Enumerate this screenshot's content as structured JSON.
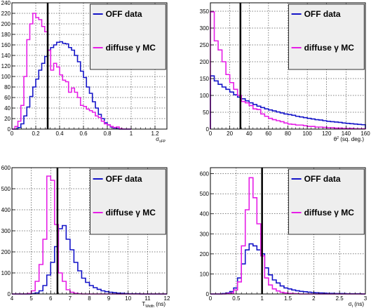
{
  "chart_data": [
    {
      "type": "step-histogram",
      "xlabel": "σ",
      "xlabel_sub": "sFP",
      "xlim": [
        0,
        1.3
      ],
      "ylim": [
        0,
        240
      ],
      "xticks": [
        0,
        0.2,
        0.4,
        0.6,
        0.8,
        1,
        1.2
      ],
      "xtick_labels": [
        "0",
        "0.2",
        "0.4",
        "0.6",
        "0.8",
        "1",
        "1.2"
      ],
      "yticks": [
        0,
        20,
        40,
        60,
        80,
        100,
        120,
        140,
        160,
        180,
        200,
        220,
        240
      ],
      "ytick_labels": [
        "0",
        "20",
        "40",
        "60",
        "80",
        "100",
        "120",
        "140",
        "160",
        "180",
        "200",
        "220",
        "240"
      ],
      "grid": true,
      "cut": 0.3,
      "bin_edges": [
        0.0,
        0.025,
        0.05,
        0.075,
        0.1,
        0.125,
        0.15,
        0.175,
        0.2,
        0.225,
        0.25,
        0.275,
        0.3,
        0.325,
        0.35,
        0.375,
        0.4,
        0.425,
        0.45,
        0.475,
        0.5,
        0.525,
        0.55,
        0.575,
        0.6,
        0.625,
        0.65,
        0.675,
        0.7,
        0.725,
        0.75,
        0.775,
        0.8,
        0.825,
        0.85,
        0.875,
        0.9,
        0.925,
        0.95,
        0.975,
        1.0
      ],
      "series": [
        {
          "name": "OFF data",
          "color": "#1414c8",
          "values": [
            0,
            0,
            3,
            10,
            25,
            42,
            62,
            80,
            95,
            112,
            125,
            138,
            150,
            155,
            160,
            165,
            166,
            163,
            162,
            155,
            150,
            140,
            128,
            110,
            98,
            80,
            68,
            52,
            40,
            28,
            20,
            12,
            8,
            4,
            2,
            1,
            0,
            0,
            0,
            0
          ]
        },
        {
          "name": "diffuse γ MC",
          "color": "#e61ee6",
          "values": [
            0,
            5,
            15,
            45,
            100,
            170,
            200,
            220,
            212,
            208,
            195,
            185,
            150,
            112,
            125,
            118,
            103,
            93,
            90,
            70,
            78,
            70,
            60,
            45,
            43,
            38,
            35,
            32,
            25,
            22,
            15,
            10,
            8,
            5,
            3,
            4,
            1,
            0,
            0,
            0
          ]
        }
      ],
      "legend": [
        "OFF data",
        "diffuse γ MC"
      ],
      "legend_placement": "top-right"
    },
    {
      "type": "step-histogram",
      "xlabel": "θ",
      "xlabel_sup": "2",
      "xlabel_unit": " (sq. deg.)",
      "xlim": [
        0,
        160
      ],
      "ylim": [
        0,
        375
      ],
      "xticks": [
        0,
        20,
        40,
        60,
        80,
        100,
        120,
        140,
        160
      ],
      "xtick_labels": [
        "0",
        "20",
        "40",
        "60",
        "80",
        "100",
        "120",
        "140",
        "160"
      ],
      "yticks": [
        0,
        50,
        100,
        150,
        200,
        250,
        300,
        350
      ],
      "ytick_labels": [
        "0",
        "50",
        "100",
        "150",
        "200",
        "250",
        "300",
        "350"
      ],
      "grid": true,
      "cut": 31,
      "bin_edges": [
        0,
        4,
        8,
        12,
        16,
        20,
        24,
        28,
        32,
        36,
        40,
        44,
        48,
        52,
        56,
        60,
        64,
        68,
        72,
        76,
        80,
        84,
        88,
        92,
        96,
        100,
        104,
        108,
        112,
        116,
        120,
        124,
        128,
        132,
        136,
        140,
        144,
        148,
        152,
        156,
        160
      ],
      "series": [
        {
          "name": "OFF data",
          "color": "#1414c8",
          "values": [
            158,
            143,
            133,
            125,
            118,
            110,
            102,
            95,
            90,
            84,
            78,
            73,
            68,
            64,
            60,
            57,
            54,
            51,
            48,
            45,
            43,
            41,
            38,
            36,
            34,
            32,
            30,
            28,
            27,
            25,
            23,
            22,
            21,
            20,
            18,
            17,
            16,
            15,
            14,
            13
          ]
        },
        {
          "name": "diffuse γ MC",
          "color": "#e61ee6",
          "values": [
            348,
            262,
            235,
            200,
            162,
            138,
            118,
            100,
            82,
            78,
            70,
            60,
            58,
            45,
            38,
            32,
            28,
            25,
            22,
            18,
            15,
            14,
            12,
            12,
            10,
            8,
            8,
            6,
            6,
            5,
            4,
            4,
            3,
            3,
            2,
            2,
            2,
            1,
            1,
            1
          ]
        }
      ],
      "legend": [
        "OFF data",
        "diffuse γ MC"
      ],
      "legend_placement": "top-right"
    },
    {
      "type": "step-histogram",
      "xlabel": "T",
      "xlabel_sub": "Width",
      "xlabel_unit": " (ns)",
      "xlim": [
        4,
        12
      ],
      "ylim": [
        0,
        600
      ],
      "xticks": [
        4,
        5,
        6,
        7,
        8,
        9,
        10,
        11,
        12
      ],
      "xtick_labels": [
        "4",
        "5",
        "6",
        "7",
        "8",
        "9",
        "10",
        "11",
        "12"
      ],
      "yticks": [
        0,
        100,
        200,
        300,
        400,
        500,
        600
      ],
      "ytick_labels": [
        "0",
        "100",
        "200",
        "300",
        "400",
        "500",
        "600"
      ],
      "grid": true,
      "cut": 6.35,
      "bin_edges": [
        4.0,
        4.2,
        4.4,
        4.6,
        4.8,
        5.0,
        5.2,
        5.4,
        5.6,
        5.8,
        6.0,
        6.2,
        6.4,
        6.6,
        6.8,
        7.0,
        7.2,
        7.4,
        7.6,
        7.8,
        8.0,
        8.2,
        8.4,
        8.6,
        8.8,
        9.0,
        9.2,
        9.4,
        9.6,
        9.8,
        10.0,
        10.2,
        10.4,
        10.6,
        10.8,
        11.0,
        11.2,
        11.4,
        11.6,
        11.8,
        12.0
      ],
      "series": [
        {
          "name": "OFF data",
          "color": "#1414c8",
          "values": [
            0,
            0,
            0,
            0,
            0,
            2,
            5,
            15,
            40,
            90,
            150,
            225,
            310,
            325,
            260,
            210,
            150,
            110,
            75,
            55,
            40,
            30,
            22,
            15,
            11,
            8,
            6,
            4,
            3,
            2,
            1,
            1,
            1,
            0,
            0,
            0,
            0,
            0,
            0,
            0
          ]
        },
        {
          "name": "diffuse γ MC",
          "color": "#e61ee6",
          "values": [
            0,
            0,
            0,
            0,
            2,
            15,
            60,
            140,
            260,
            560,
            540,
            330,
            100,
            60,
            20,
            8,
            3,
            1,
            0,
            0,
            0,
            0,
            0,
            0,
            0,
            0,
            0,
            0,
            0,
            0,
            0,
            0,
            0,
            0,
            0,
            0,
            0,
            0,
            0,
            0
          ]
        }
      ],
      "legend": [
        "OFF data",
        "diffuse γ MC"
      ],
      "legend_placement": "top-right"
    },
    {
      "type": "step-histogram",
      "xlabel": "σ",
      "xlabel_sub": "t",
      "xlabel_unit": " (ns)",
      "xlim": [
        0,
        3
      ],
      "ylim": [
        0,
        630
      ],
      "xticks": [
        0,
        0.5,
        1,
        1.5,
        2,
        2.5,
        3
      ],
      "xtick_labels": [
        "0",
        "0.5",
        "1",
        "1.5",
        "2",
        "2.5",
        "3"
      ],
      "yticks": [
        0,
        100,
        200,
        300,
        400,
        500,
        600
      ],
      "ytick_labels": [
        "0",
        "100",
        "200",
        "300",
        "400",
        "500",
        "600"
      ],
      "grid": true,
      "cut": 1.0,
      "bin_edges": [
        0.0,
        0.075,
        0.15,
        0.225,
        0.3,
        0.375,
        0.45,
        0.525,
        0.6,
        0.675,
        0.75,
        0.825,
        0.9,
        0.975,
        1.05,
        1.125,
        1.2,
        1.275,
        1.35,
        1.425,
        1.5,
        1.575,
        1.65,
        1.725,
        1.8,
        1.875,
        1.95,
        2.025,
        2.1,
        2.175,
        2.25,
        2.325,
        2.4,
        2.475,
        2.55,
        2.625,
        2.7,
        2.775,
        2.85,
        2.925,
        3.0
      ],
      "series": [
        {
          "name": "OFF data",
          "color": "#1414c8",
          "values": [
            0,
            0,
            0,
            2,
            5,
            12,
            30,
            80,
            150,
            220,
            250,
            240,
            220,
            200,
            130,
            95,
            70,
            55,
            40,
            30,
            25,
            20,
            16,
            13,
            11,
            9,
            7,
            6,
            5,
            4,
            3,
            3,
            2,
            2,
            2,
            1,
            1,
            1,
            1,
            0
          ]
        },
        {
          "name": "diffuse γ MC",
          "color": "#e61ee6",
          "values": [
            0,
            0,
            0,
            0,
            2,
            5,
            20,
            60,
            240,
            420,
            580,
            480,
            350,
            190,
            80,
            45,
            25,
            15,
            8,
            5,
            3,
            2,
            1,
            0,
            0,
            0,
            0,
            0,
            0,
            0,
            0,
            0,
            0,
            0,
            0,
            0,
            0,
            0,
            0,
            0
          ]
        }
      ],
      "legend": [
        "OFF data",
        "diffuse γ MC"
      ],
      "legend_placement": "top-right"
    }
  ]
}
